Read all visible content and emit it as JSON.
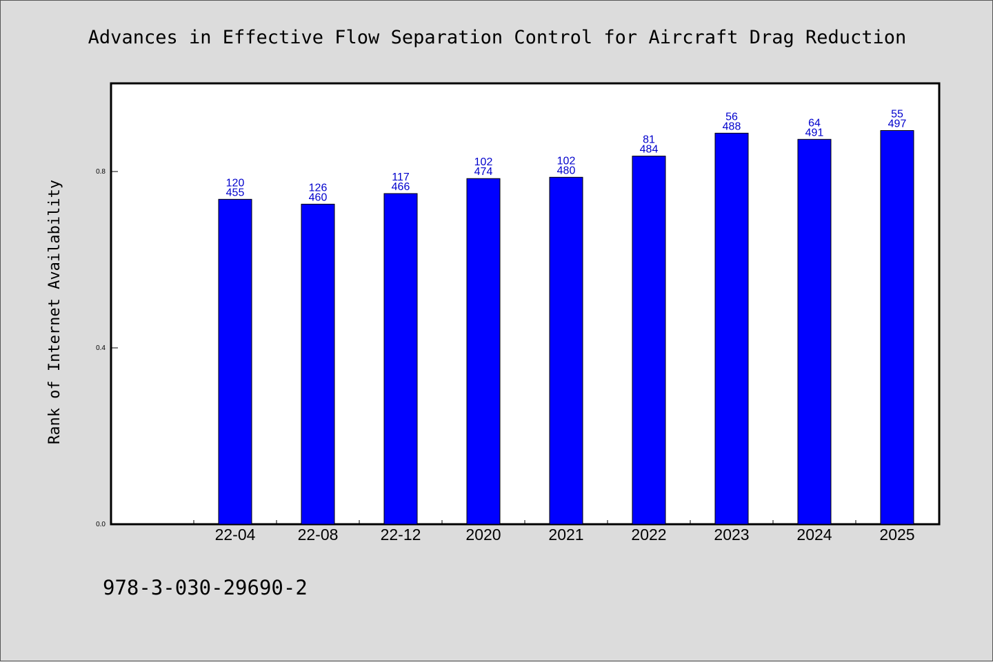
{
  "chart_data": {
    "type": "bar",
    "title": "Advances in Effective Flow Separation Control for Aircraft Drag Reduction",
    "xlabel": "",
    "ylabel": "Rank of Internet Availability",
    "categories": [
      "22-04",
      "22-08",
      "22-12",
      "2020",
      "2021",
      "2022",
      "2023",
      "2024",
      "2025"
    ],
    "values": [
      0.737,
      0.726,
      0.75,
      0.784,
      0.787,
      0.835,
      0.887,
      0.873,
      0.893
    ],
    "labels_top": [
      "120",
      "126",
      "117",
      "102",
      "102",
      "81",
      "56",
      "64",
      "55"
    ],
    "labels_bottom": [
      "455",
      "460",
      "466",
      "474",
      "480",
      "484",
      "488",
      "491",
      "497"
    ],
    "ylim": [
      0.0,
      1.0
    ],
    "yticks": [
      0.0,
      0.4,
      0.8
    ],
    "ytick_labels": [
      "0.0",
      "0.4",
      "0.8"
    ],
    "grid": false,
    "colors": {
      "bar": "#0000ff",
      "bar_edge": "#000000",
      "data_label": "#0000cc",
      "plot_bg": "#ffffff",
      "figure_bg": "#dcdcdc"
    }
  },
  "footer": {
    "isbn": "978-3-030-29690-2"
  }
}
